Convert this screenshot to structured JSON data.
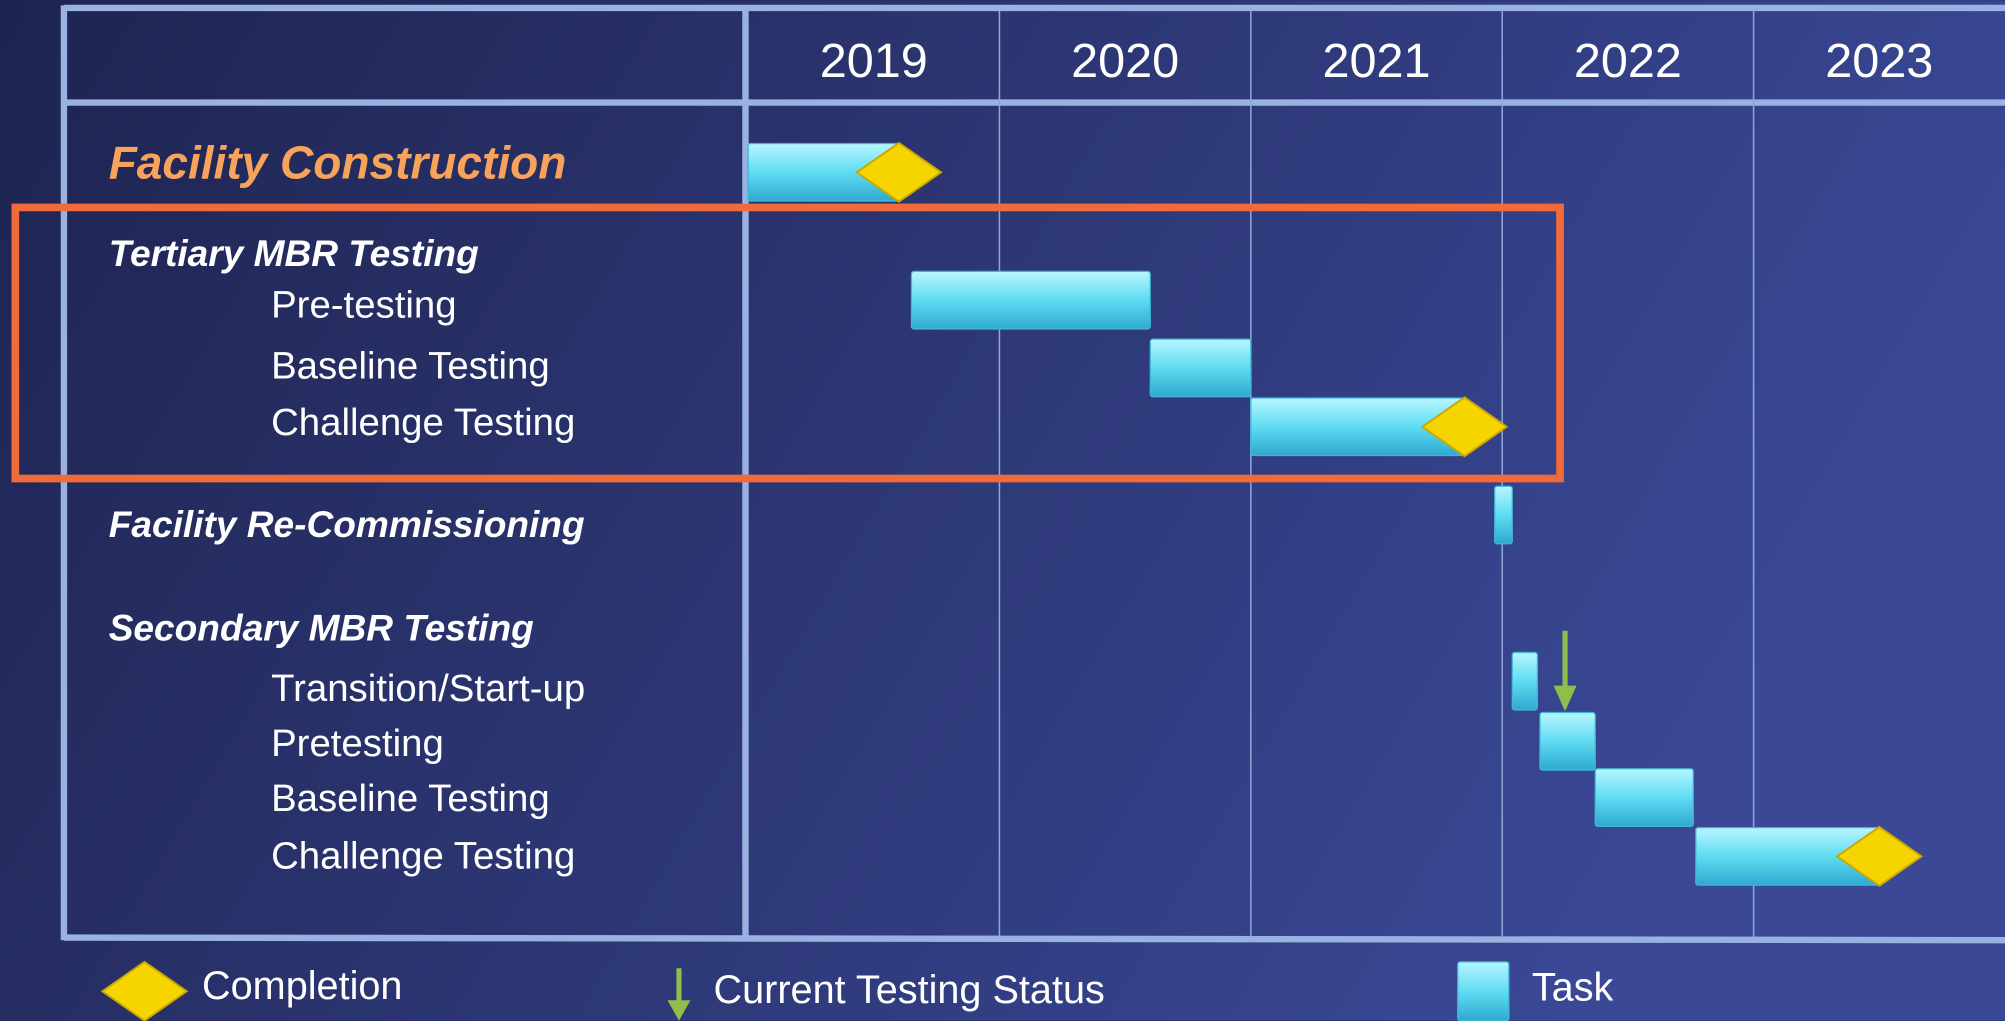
{
  "chart_data": {
    "type": "gantt",
    "xlim": [
      2019,
      2024
    ],
    "xticks": [
      2019,
      2020,
      2021,
      2022,
      2023
    ],
    "bar_color": "#5fdcf2",
    "milestone_color": "#f5d400",
    "status_color": "#8fbf4a",
    "tasks": [
      {
        "label": "Facility Construction",
        "level": "phase",
        "color": "#f7a35c",
        "start": 2019.0,
        "end": 2019.6,
        "completion": true
      },
      {
        "label": "Tertiary MBR Testing",
        "level": "phase",
        "start": null,
        "end": null,
        "completion": false
      },
      {
        "label": "Pre-testing",
        "level": "task",
        "start": 2019.65,
        "end": 2020.6,
        "completion": false
      },
      {
        "label": "Baseline Testing",
        "level": "task",
        "start": 2020.6,
        "end": 2021.0,
        "completion": false
      },
      {
        "label": "Challenge Testing",
        "level": "task",
        "start": 2021.0,
        "end": 2021.85,
        "completion": true
      },
      {
        "label": "Facility Re-Commissioning",
        "level": "phase",
        "start": 2021.97,
        "end": 2022.04,
        "completion": false
      },
      {
        "label": "Secondary MBR Testing",
        "level": "phase",
        "start": null,
        "end": null,
        "completion": false
      },
      {
        "label": "Transition/Start-up",
        "level": "task",
        "start": 2022.04,
        "end": 2022.14,
        "completion": false
      },
      {
        "label": "Pretesting",
        "level": "task",
        "start": 2022.15,
        "end": 2022.37,
        "completion": false
      },
      {
        "label": "Baseline Testing",
        "level": "task",
        "start": 2022.37,
        "end": 2022.76,
        "completion": false
      },
      {
        "label": "Challenge Testing",
        "level": "task",
        "start": 2022.77,
        "end": 2023.5,
        "completion": true
      }
    ],
    "current": 2022.25,
    "legend": {
      "completion": "Completion",
      "current": "Current Testing Status",
      "task": "Task"
    }
  }
}
